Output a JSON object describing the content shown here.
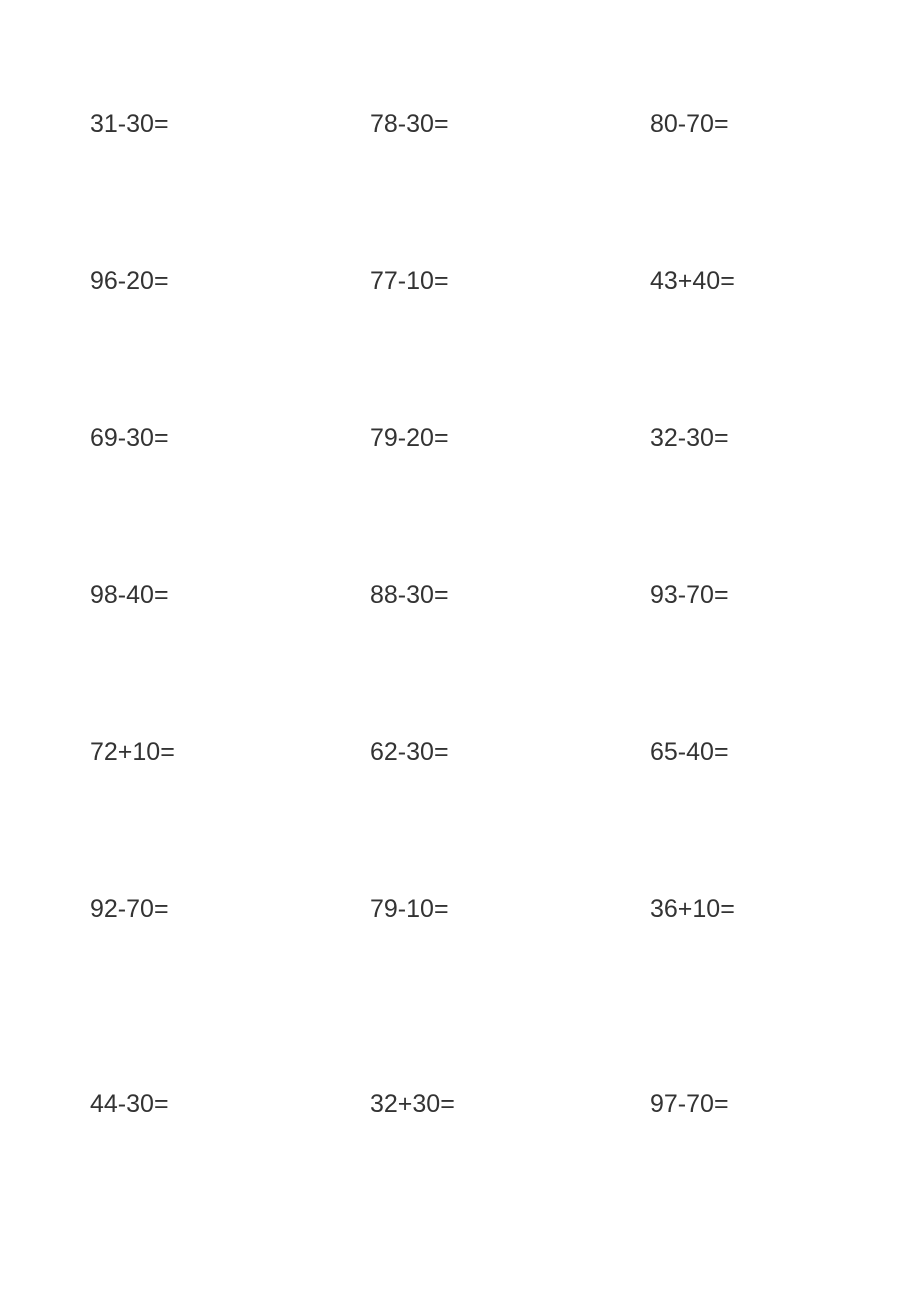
{
  "worksheet": {
    "text_color": "#333333",
    "background_color": "#ffffff",
    "font_size": 25,
    "columns": 3,
    "rows": 7,
    "problems": [
      [
        "31-30=",
        "78-30=",
        "80-70="
      ],
      [
        "96-20=",
        "77-10=",
        "43+40="
      ],
      [
        "69-30=",
        "79-20=",
        "32-30="
      ],
      [
        "98-40=",
        "88-30=",
        "93-70="
      ],
      [
        "72+10=",
        "62-30=",
        "65-40="
      ],
      [
        "92-70=",
        "79-10=",
        "36+10="
      ],
      [
        "44-30=",
        "32+30=",
        "97-70="
      ]
    ]
  }
}
